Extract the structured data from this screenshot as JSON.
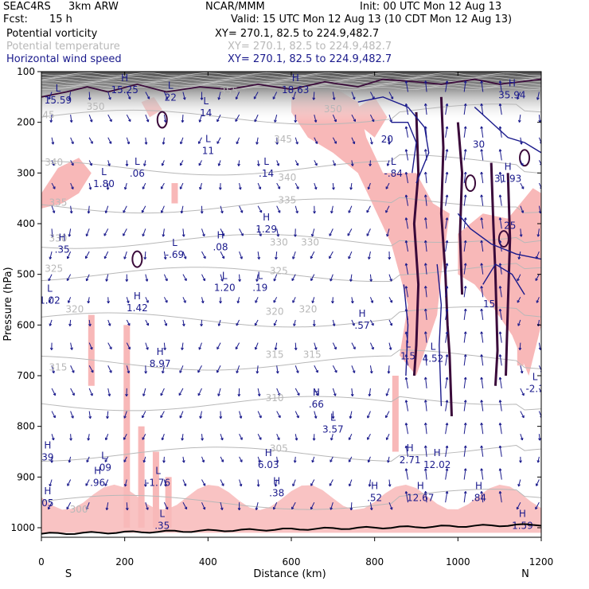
{
  "header": {
    "project": "SEAC4RS",
    "model": "3km ARW",
    "center": "NCAR/MMM",
    "init": "Init: 00 UTC Mon 12 Aug 13",
    "fcst_label": "Fcst:",
    "fcst_value": "15 h",
    "valid": "Valid: 15 UTC Mon 12 Aug 13 (10 CDT Mon 12 Aug 13)",
    "fields": [
      {
        "name": "Potential vorticity",
        "xy": "XY= 270.1, 82.5 to 224.9,482.7"
      },
      {
        "name": "Potential temperature",
        "xy": "XY= 270.1, 82.5 to 224.9,482.7"
      },
      {
        "name": "Horizontal wind speed",
        "xy": "XY= 270.1, 82.5 to 224.9,482.7"
      }
    ]
  },
  "colors": {
    "pv": "#000000",
    "temperature": "#b8b8b8",
    "wind": "#1a1a8c",
    "pv_contour": "#3a0a3a",
    "shading": "#f8b8b8",
    "vector": "#1a1a8c"
  },
  "chart_data": {
    "type": "cross-section",
    "xlabel": "Distance (km)",
    "ylabel": "Pressure (hPa)",
    "xlim": [
      0,
      1200
    ],
    "ylim": [
      1000,
      100
    ],
    "x_ticks": [
      "0",
      "200",
      "400",
      "600",
      "800",
      "1000",
      "1200"
    ],
    "y_ticks": [
      "100",
      "200",
      "300",
      "400",
      "500",
      "600",
      "700",
      "800",
      "900",
      "1000"
    ],
    "x_end_labels": {
      "left": "S",
      "right": "N"
    },
    "theta_contours": [
      {
        "label": "345",
        "p": 190
      },
      {
        "label": "340",
        "p": 290
      },
      {
        "label": "335",
        "p": 365
      },
      {
        "label": "330",
        "p": 435
      },
      {
        "label": "325",
        "p": 500
      },
      {
        "label": "320",
        "p": 590
      },
      {
        "label": "315",
        "p": 675
      },
      {
        "label": "310",
        "p": 755
      },
      {
        "label": "305",
        "p": 855
      },
      {
        "label": "300",
        "p": 950
      }
    ],
    "theta_labels": [
      {
        "text": "350",
        "x": 130,
        "p": 175
      },
      {
        "text": "345",
        "x": 10,
        "p": 192
      },
      {
        "text": "355",
        "x": 450,
        "p": 145
      },
      {
        "text": "345",
        "x": 580,
        "p": 240
      },
      {
        "text": "350",
        "x": 700,
        "p": 180
      },
      {
        "text": "340",
        "x": 30,
        "p": 285
      },
      {
        "text": "340",
        "x": 590,
        "p": 315
      },
      {
        "text": "335",
        "x": 40,
        "p": 365
      },
      {
        "text": "335",
        "x": 590,
        "p": 360
      },
      {
        "text": "330",
        "x": 40,
        "p": 435
      },
      {
        "text": "330",
        "x": 570,
        "p": 443
      },
      {
        "text": "330",
        "x": 645,
        "p": 443
      },
      {
        "text": "325",
        "x": 30,
        "p": 495
      },
      {
        "text": "325",
        "x": 570,
        "p": 500
      },
      {
        "text": "320",
        "x": 80,
        "p": 575
      },
      {
        "text": "320",
        "x": 560,
        "p": 580
      },
      {
        "text": "320",
        "x": 640,
        "p": 575
      },
      {
        "text": "315",
        "x": 40,
        "p": 690
      },
      {
        "text": "315",
        "x": 560,
        "p": 665
      },
      {
        "text": "315",
        "x": 650,
        "p": 665
      },
      {
        "text": "310",
        "x": 560,
        "p": 750
      },
      {
        "text": "305",
        "x": 570,
        "p": 850
      },
      {
        "text": "300",
        "x": 90,
        "p": 970
      }
    ],
    "extrema": [
      {
        "type": "H",
        "x": 200,
        "p": 130,
        "value": "15.25"
      },
      {
        "type": "H",
        "x": 610,
        "p": 130,
        "value": "18.63"
      },
      {
        "type": "H",
        "x": 1130,
        "p": 140,
        "value": "35.94"
      },
      {
        "type": "L",
        "x": 40,
        "p": 150,
        "value": "15.59"
      },
      {
        "type": "L",
        "x": 310,
        "p": 145,
        "value": "22"
      },
      {
        "type": "L",
        "x": 395,
        "p": 175,
        "value": "14"
      },
      {
        "type": "L",
        "x": 400,
        "p": 250,
        "value": "11"
      },
      {
        "type": "L",
        "x": 230,
        "p": 295,
        "value": ".06"
      },
      {
        "type": "L",
        "x": 540,
        "p": 295,
        "value": ".14"
      },
      {
        "type": "L",
        "x": 150,
        "p": 315,
        "value": "1.80"
      },
      {
        "type": "L",
        "x": 845,
        "p": 295,
        "value": "-.84"
      },
      {
        "type": "H",
        "x": 1120,
        "p": 305,
        "value": "31.93"
      },
      {
        "type": "H",
        "x": 540,
        "p": 405,
        "value": "1.29"
      },
      {
        "type": "H",
        "x": 430,
        "p": 440,
        "value": ".08"
      },
      {
        "type": "L",
        "x": 320,
        "p": 455,
        "value": "-.69"
      },
      {
        "type": "H",
        "x": 50,
        "p": 445,
        "value": ".35"
      },
      {
        "type": "L",
        "x": 440,
        "p": 520,
        "value": "1.20"
      },
      {
        "type": "L",
        "x": 525,
        "p": 520,
        "value": ".19"
      },
      {
        "type": "L",
        "x": 20,
        "p": 545,
        "value": "1.02"
      },
      {
        "type": "H",
        "x": 230,
        "p": 560,
        "value": "1.42"
      },
      {
        "type": "H",
        "x": 770,
        "p": 595,
        "value": ".57"
      },
      {
        "type": "H",
        "x": 285,
        "p": 670,
        "value": "8.97"
      },
      {
        "type": "L",
        "x": 1185,
        "p": 720,
        "value": "-2.1"
      },
      {
        "type": "H",
        "x": 660,
        "p": 750,
        "value": ".66"
      },
      {
        "type": "L",
        "x": 700,
        "p": 800,
        "value": "3.57"
      },
      {
        "type": "H",
        "x": 15,
        "p": 855,
        "value": "39"
      },
      {
        "type": "L",
        "x": 150,
        "p": 875,
        "value": ".09"
      },
      {
        "type": "H",
        "x": 135,
        "p": 905,
        "value": ".96"
      },
      {
        "type": "L",
        "x": 280,
        "p": 905,
        "value": "-1.76"
      },
      {
        "type": "H",
        "x": 545,
        "p": 870,
        "value": "6.03"
      },
      {
        "type": "H",
        "x": 565,
        "p": 925,
        "value": ".38"
      },
      {
        "type": "H",
        "x": 885,
        "p": 860,
        "value": "2.71"
      },
      {
        "type": "H",
        "x": 950,
        "p": 870,
        "value": "12.02"
      },
      {
        "type": "H",
        "x": 800,
        "p": 935,
        "value": ".52"
      },
      {
        "type": "H",
        "x": 910,
        "p": 935,
        "value": "12.67"
      },
      {
        "type": "H",
        "x": 1050,
        "p": 935,
        "value": ".84"
      },
      {
        "type": "H",
        "x": 15,
        "p": 945,
        "value": "05"
      },
      {
        "type": "L",
        "x": 290,
        "p": 990,
        "value": ".35"
      },
      {
        "type": "H",
        "x": 1155,
        "p": 990,
        "value": "1.59"
      },
      {
        "type": "L",
        "x": 940,
        "p": 660,
        "value": "4.52"
      },
      {
        "type": "L",
        "x": 880,
        "p": 655,
        "value": "1.5"
      }
    ],
    "wind_labels": [
      {
        "text": "20",
        "x": 830,
        "p": 240
      },
      {
        "text": "30",
        "x": 1050,
        "p": 250
      },
      {
        "text": "25",
        "x": 1125,
        "p": 410
      },
      {
        "text": "15",
        "x": 1075,
        "p": 565
      }
    ]
  }
}
